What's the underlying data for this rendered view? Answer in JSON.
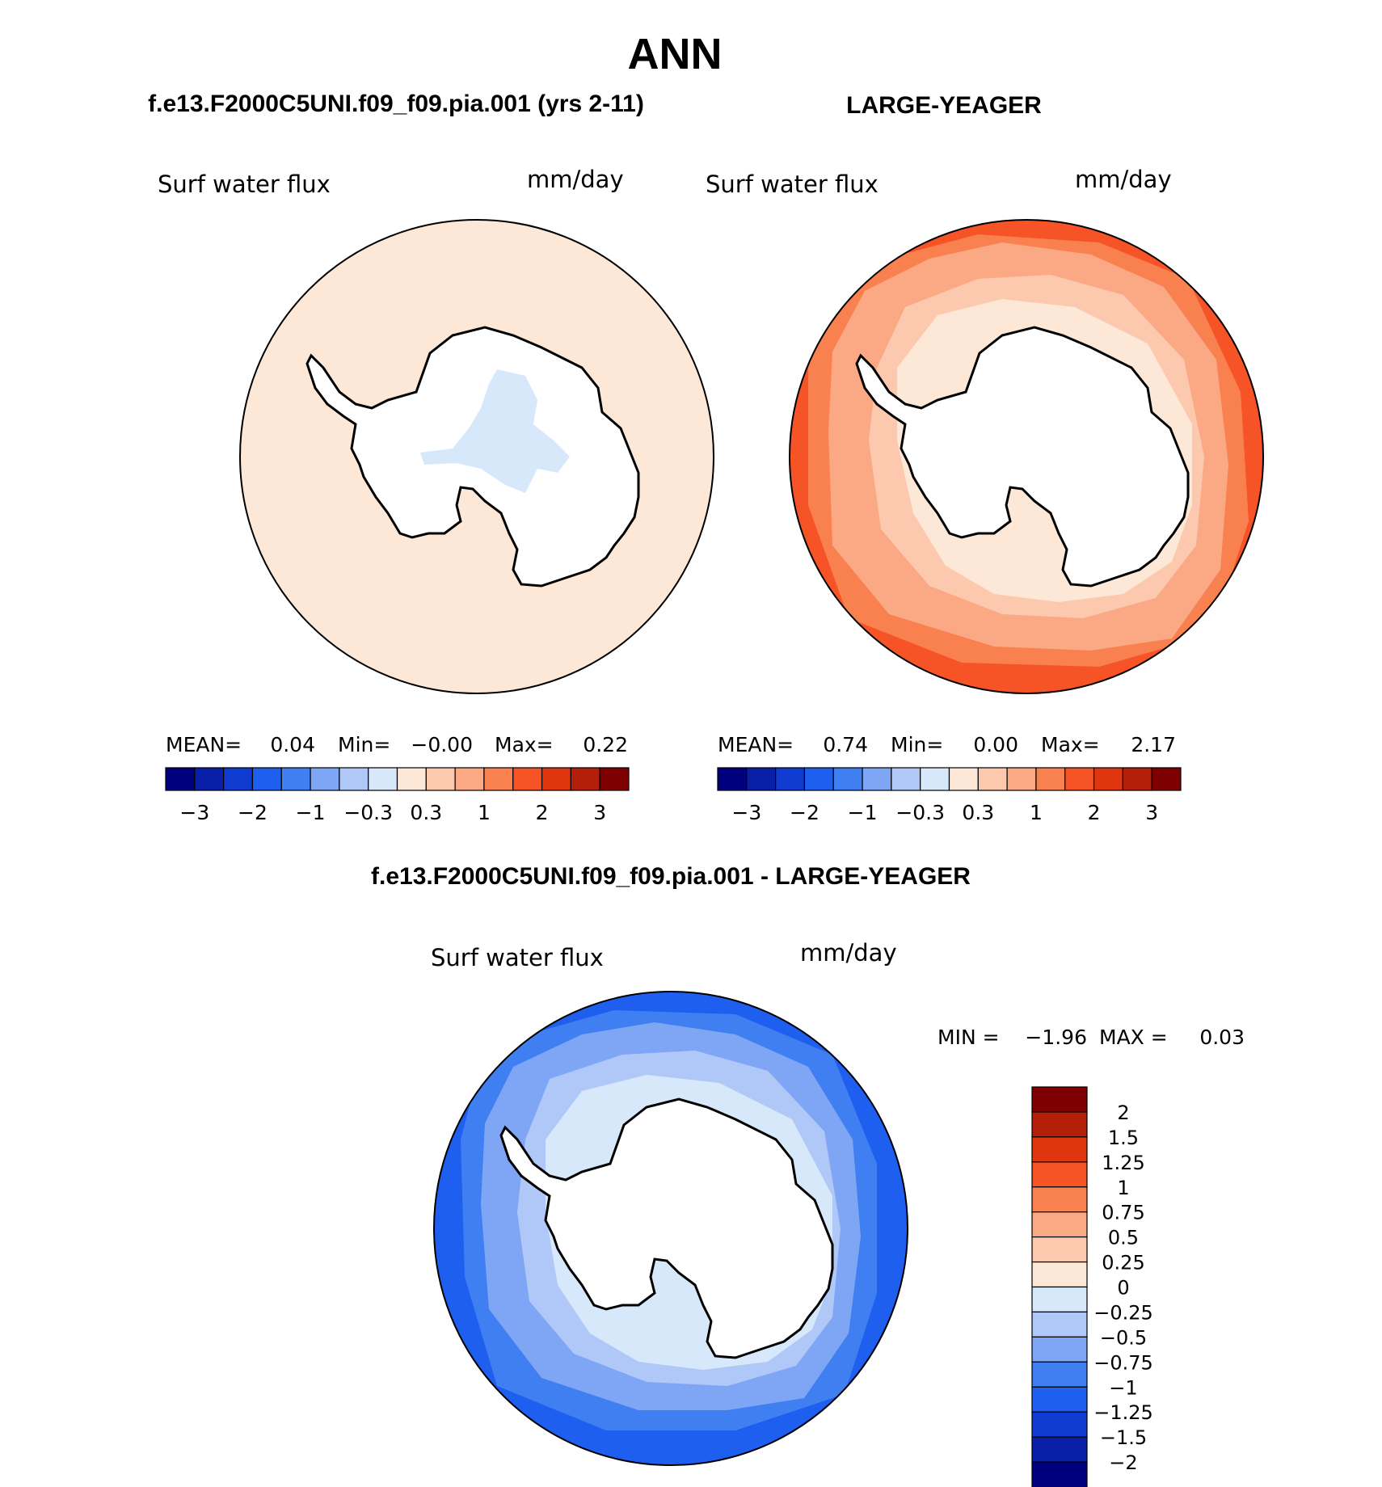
{
  "title": "ANN",
  "panels": [
    {
      "id": "model",
      "heading": "f.e13.F2000C5UNI.f09_f09.pia.001 (yrs 2-11)",
      "variable": "Surf  water  flux",
      "units": "mm/day",
      "stats": {
        "mean_label": "MEAN=",
        "mean": "0.04",
        "min_label": "Min=",
        "min": "−0.00",
        "max_label": "Max=",
        "max": "0.22"
      }
    },
    {
      "id": "obs",
      "heading": "LARGE-YEAGER",
      "variable": "Surf  water  flux",
      "units": "mm/day",
      "stats": {
        "mean_label": "MEAN=",
        "mean": "0.74",
        "min_label": "Min=",
        "min": "0.00",
        "max_label": "Max=",
        "max": "2.17"
      }
    },
    {
      "id": "diff",
      "heading": "f.e13.F2000C5UNI.f09_f09.pia.001 - LARGE-YEAGER",
      "variable": "Surf  water  flux",
      "units": "mm/day",
      "stats": {
        "min_label": "MIN  =",
        "min": "−1.96",
        "max_label": "MAX  =",
        "max": "0.03"
      }
    }
  ],
  "colorbar_top": {
    "colors": [
      "#00007f",
      "#0a1fa8",
      "#0f3bd0",
      "#1f5ff0",
      "#3f7ff2",
      "#7fa6f5",
      "#b0c8f8",
      "#d8e8fb",
      "#fde7d6",
      "#fcc9ae",
      "#fba884",
      "#f9814f",
      "#f65326",
      "#e03610",
      "#b51e08",
      "#7f0000"
    ],
    "tick_labels": [
      "−3",
      "−2",
      "−1",
      "−0.3",
      "0.3",
      "1",
      "2",
      "3"
    ]
  },
  "colorbar_diff": {
    "colors_top_to_bottom": [
      "#7f0000",
      "#b51e08",
      "#e03610",
      "#f65326",
      "#f9814f",
      "#fba884",
      "#fcc9ae",
      "#fde7d6",
      "#d8e8fb",
      "#b0c8f8",
      "#7fa6f5",
      "#3f7ff2",
      "#1f5ff0",
      "#0f3bd0",
      "#0a1fa8",
      "#00007f"
    ],
    "tick_labels": [
      "2",
      "1.5",
      "1.25",
      "1",
      "0.75",
      "0.5",
      "0.25",
      "0",
      "−0.25",
      "−0.5",
      "−0.75",
      "−1",
      "−1.25",
      "−1.5",
      "−2"
    ]
  },
  "map_colors": {
    "model_fill": "#fde7d6",
    "model_interior": "#d8e8fb",
    "obs_outer": "#f65326",
    "obs_mid": "#f9814f",
    "obs_inner": "#fba884",
    "obs_near": "#fcc9ae",
    "obs_coast": "#fde7d6",
    "diff_outer": "#1f5ff0",
    "diff_mid": "#3f7ff2",
    "diff_inner": "#7fa6f5",
    "diff_near": "#b0c8f8",
    "diff_coast": "#d8e8fb",
    "land": "#ffffff",
    "coastline": "#000000"
  }
}
